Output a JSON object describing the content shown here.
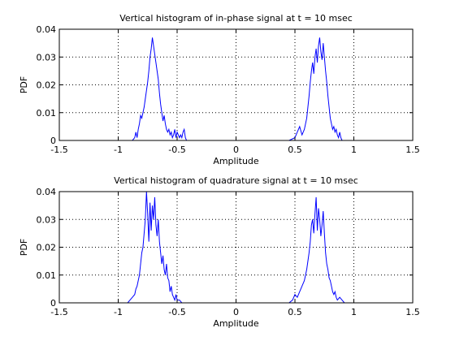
{
  "chart_data": [
    {
      "type": "line",
      "title": "Vertical histogram of in-phase signal at t = 10 msec",
      "xlabel": "Amplitude",
      "ylabel": "PDF",
      "xlim": [
        -1.5,
        1.5
      ],
      "ylim": [
        0,
        0.04
      ],
      "xticks": [
        "-1.5",
        "-1",
        "-0.5",
        "0",
        "0.5",
        "1",
        "1.5"
      ],
      "yticks": [
        "0",
        "0.01",
        "0.02",
        "0.03",
        "0.04"
      ],
      "grid": true,
      "series": [
        {
          "color": "#0000ff",
          "x": [
            -0.9,
            -0.88,
            -0.86,
            -0.85,
            -0.84,
            -0.83,
            -0.82,
            -0.81,
            -0.8,
            -0.79,
            -0.78,
            -0.77,
            -0.76,
            -0.75,
            -0.74,
            -0.73,
            -0.72,
            -0.71,
            -0.7,
            -0.69,
            -0.68,
            -0.67,
            -0.66,
            -0.65,
            -0.64,
            -0.63,
            -0.62,
            -0.61,
            -0.6,
            -0.59,
            -0.58,
            -0.57,
            -0.56,
            -0.55,
            -0.54,
            -0.53,
            -0.52,
            -0.51,
            -0.5,
            -0.49,
            -0.48,
            -0.47,
            -0.46,
            -0.45,
            -0.44,
            -0.43,
            -0.42,
            -0.41,
            -0.4,
            0.4,
            0.45,
            0.5,
            0.52,
            0.54,
            0.56,
            0.58,
            0.6,
            0.61,
            0.62,
            0.63,
            0.64,
            0.65,
            0.66,
            0.67,
            0.68,
            0.69,
            0.7,
            0.71,
            0.72,
            0.73,
            0.74,
            0.75,
            0.76,
            0.77,
            0.78,
            0.79,
            0.8,
            0.81,
            0.82,
            0.83,
            0.84,
            0.85,
            0.86,
            0.87,
            0.88,
            0.89,
            0.9
          ],
          "y": [
            0,
            0,
            0.001,
            0.003,
            0.001,
            0.004,
            0.006,
            0.009,
            0.008,
            0.01,
            0.012,
            0.015,
            0.018,
            0.021,
            0.025,
            0.03,
            0.033,
            0.037,
            0.034,
            0.031,
            0.028,
            0.025,
            0.022,
            0.017,
            0.013,
            0.01,
            0.007,
            0.009,
            0.006,
            0.004,
            0.003,
            0.004,
            0.002,
            0.003,
            0.001,
            0.002,
            0.004,
            0.001,
            0.003,
            0.002,
            0.001,
            0.002,
            0.001,
            0.003,
            0.004,
            0.001,
            0,
            0,
            0,
            0,
            0,
            0.001,
            0.003,
            0.005,
            0.002,
            0.004,
            0.008,
            0.012,
            0.016,
            0.021,
            0.025,
            0.028,
            0.024,
            0.03,
            0.033,
            0.028,
            0.034,
            0.037,
            0.032,
            0.029,
            0.035,
            0.03,
            0.025,
            0.021,
            0.016,
            0.012,
            0.008,
            0.006,
            0.004,
            0.005,
            0.003,
            0.004,
            0.002,
            0.001,
            0.003,
            0.001,
            0
          ]
        }
      ]
    },
    {
      "type": "line",
      "title": "Vertical histogram of quadrature signal at t = 10 msec",
      "xlabel": "Amplitude",
      "ylabel": "PDF",
      "xlim": [
        -1.5,
        1.5
      ],
      "ylim": [
        0,
        0.04
      ],
      "xticks": [
        "-1.5",
        "-1",
        "-0.5",
        "0",
        "0.5",
        "1",
        "1.5"
      ],
      "yticks": [
        "0",
        "0.01",
        "0.02",
        "0.03",
        "0.04"
      ],
      "grid": true,
      "series": [
        {
          "color": "#0000ff",
          "x": [
            -0.95,
            -0.92,
            -0.9,
            -0.88,
            -0.86,
            -0.85,
            -0.84,
            -0.83,
            -0.82,
            -0.81,
            -0.8,
            -0.79,
            -0.78,
            -0.77,
            -0.76,
            -0.75,
            -0.74,
            -0.73,
            -0.72,
            -0.71,
            -0.7,
            -0.69,
            -0.68,
            -0.67,
            -0.66,
            -0.65,
            -0.64,
            -0.63,
            -0.62,
            -0.61,
            -0.6,
            -0.59,
            -0.58,
            -0.57,
            -0.56,
            -0.55,
            -0.54,
            -0.53,
            -0.52,
            -0.51,
            -0.5,
            -0.48,
            -0.46,
            0.45,
            0.48,
            0.5,
            0.52,
            0.54,
            0.56,
            0.58,
            0.59,
            0.6,
            0.61,
            0.62,
            0.63,
            0.64,
            0.65,
            0.66,
            0.67,
            0.68,
            0.69,
            0.7,
            0.71,
            0.72,
            0.73,
            0.74,
            0.75,
            0.76,
            0.77,
            0.78,
            0.79,
            0.8,
            0.81,
            0.82,
            0.83,
            0.84,
            0.85,
            0.86,
            0.88,
            0.9,
            0.92,
            0.95
          ],
          "y": [
            0,
            0,
            0.001,
            0.002,
            0.003,
            0.005,
            0.006,
            0.008,
            0.01,
            0.014,
            0.018,
            0.02,
            0.025,
            0.03,
            0.04,
            0.032,
            0.022,
            0.036,
            0.026,
            0.035,
            0.03,
            0.038,
            0.028,
            0.024,
            0.03,
            0.022,
            0.018,
            0.014,
            0.017,
            0.012,
            0.01,
            0.014,
            0.009,
            0.008,
            0.004,
            0.006,
            0.003,
            0.002,
            0.001,
            0.003,
            0.001,
            0.001,
            0,
            0,
            0.001,
            0.003,
            0.002,
            0.004,
            0.006,
            0.008,
            0.01,
            0.012,
            0.015,
            0.018,
            0.022,
            0.028,
            0.03,
            0.025,
            0.032,
            0.038,
            0.026,
            0.034,
            0.03,
            0.024,
            0.028,
            0.033,
            0.025,
            0.018,
            0.014,
            0.012,
            0.009,
            0.008,
            0.006,
            0.004,
            0.003,
            0.004,
            0.002,
            0.001,
            0.002,
            0.001,
            0,
            0
          ]
        }
      ]
    }
  ]
}
